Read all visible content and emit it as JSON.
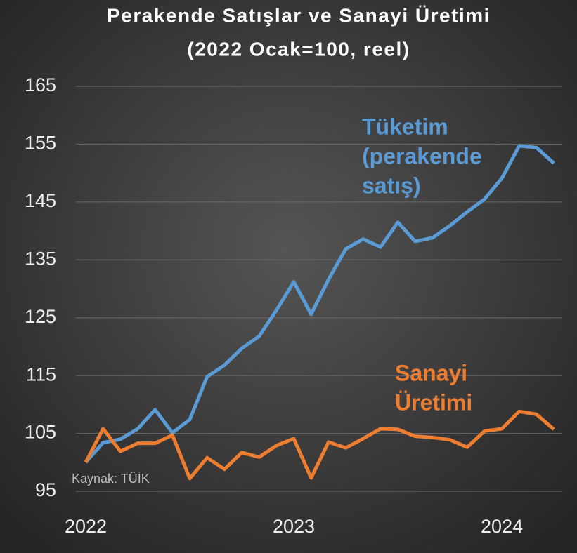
{
  "chart_data": {
    "type": "line",
    "title": "Perakende Satışlar ve Sanayi Üretimi",
    "subtitle": "(2022 Ocak=100, reel)",
    "source": "Kaynak: TÜİK",
    "categories": [
      "2022",
      null,
      null,
      null,
      null,
      null,
      null,
      null,
      null,
      null,
      null,
      null,
      "2023",
      null,
      null,
      null,
      null,
      null,
      null,
      null,
      null,
      null,
      null,
      null,
      "2024",
      null,
      null,
      null
    ],
    "series": [
      {
        "name": "Tüketim (perakende satış)",
        "label_lines": [
          "Tüketim",
          "(perakende",
          "satış)"
        ],
        "color": "#5b9bd5",
        "values": [
          100,
          103.4,
          104,
          105.8,
          109.1,
          105.1,
          107.4,
          114.8,
          116.8,
          119.7,
          121.8,
          126.3,
          131.2,
          125.6,
          131.6,
          136.9,
          138.6,
          137.2,
          141.5,
          138.2,
          138.8,
          140.9,
          143.3,
          145.5,
          149.1,
          154.7,
          154.4,
          151.7
        ]
      },
      {
        "name": "Sanayi Üretimi",
        "label_lines": [
          "Sanayi",
          "Üretimi"
        ],
        "color": "#ed7d31",
        "values": [
          100,
          105.8,
          101.9,
          103.3,
          103.3,
          104.7,
          97.2,
          100.8,
          98.8,
          101.7,
          100.9,
          102.9,
          104.1,
          97.3,
          103.5,
          102.5,
          104.1,
          105.8,
          105.7,
          104.5,
          104.3,
          103.9,
          102.6,
          105.4,
          105.8,
          108.8,
          108.3,
          105.7
        ]
      }
    ],
    "ylim": [
      95,
      165
    ],
    "yticks": [
      95,
      105,
      115,
      125,
      135,
      145,
      155,
      165
    ],
    "grid": true
  }
}
